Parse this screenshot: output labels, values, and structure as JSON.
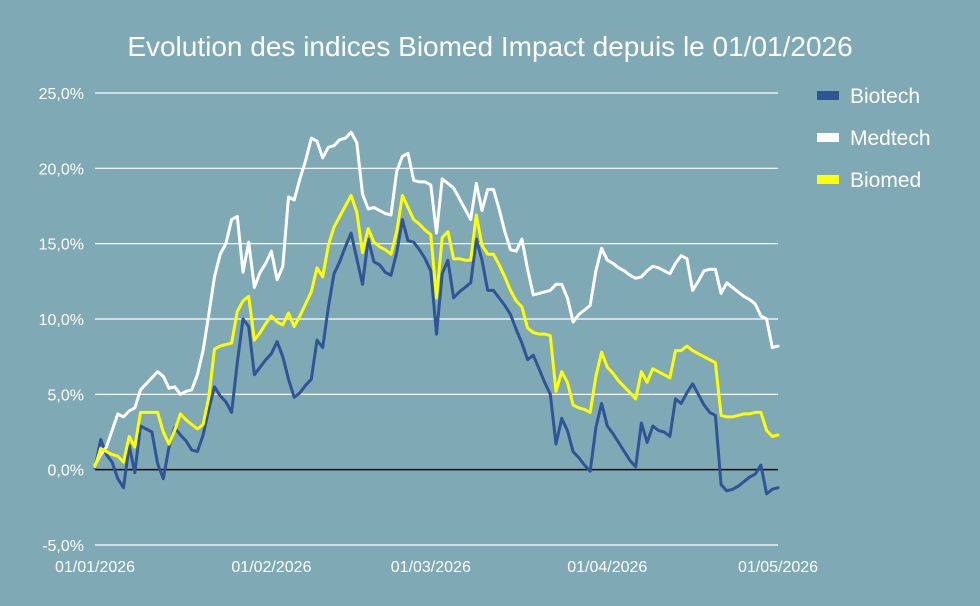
{
  "chart_data": {
    "type": "line",
    "title": "Evolution des indices Biomed Impact depuis le 01/01/2026",
    "xlabel": "",
    "ylabel": "",
    "x_ticks": [
      "01/01/2026",
      "01/02/2026",
      "01/03/2026",
      "01/04/2026",
      "01/05/2026"
    ],
    "x_tick_days": [
      0,
      31,
      59,
      90,
      120
    ],
    "x_range_days": [
      0,
      120
    ],
    "y_ticks": [
      "25,0%",
      "20,0%",
      "15,0%",
      "10,0%",
      "5,0%",
      "0,0%",
      "-5,0%"
    ],
    "y_tick_values": [
      25,
      20,
      15,
      10,
      5,
      0,
      -5
    ],
    "ylim": [
      -5,
      25
    ],
    "grid": true,
    "legend_position": "right",
    "series": [
      {
        "name": "Biotech",
        "color": "#2f5597",
        "x": [
          0,
          1,
          2,
          3,
          4,
          5,
          6,
          7,
          8,
          9,
          10,
          11,
          12,
          13,
          14,
          15,
          16,
          17,
          18,
          19,
          20,
          21,
          22,
          23,
          24,
          25,
          26,
          27,
          28,
          29,
          30,
          31,
          32,
          33,
          34,
          35,
          36,
          37,
          38,
          39,
          40,
          41,
          42,
          43,
          44,
          45,
          46,
          47,
          48,
          49,
          50,
          51,
          52,
          53,
          54,
          55,
          56,
          57,
          58,
          59,
          60,
          61,
          62,
          63,
          64,
          65,
          66,
          67,
          68,
          69,
          70,
          71,
          72,
          73,
          74,
          75,
          76,
          77,
          78,
          79,
          80,
          81,
          82,
          83,
          84,
          85,
          86,
          87,
          88,
          89,
          90,
          91,
          92,
          93,
          94,
          95,
          96,
          97,
          98,
          99,
          100,
          101,
          102,
          103,
          104,
          105,
          106,
          107,
          108,
          109,
          110,
          111,
          112,
          113,
          114,
          115,
          116,
          117,
          118,
          119,
          120
        ],
        "values": [
          0.1,
          2.0,
          1.0,
          0.5,
          -0.6,
          -1.2,
          1.6,
          -0.2,
          2.9,
          2.7,
          2.5,
          0.4,
          -0.6,
          1.5,
          2.8,
          2.3,
          1.9,
          1.3,
          1.2,
          2.3,
          4.0,
          5.5,
          4.9,
          4.5,
          3.8,
          7.1,
          10.0,
          9.5,
          6.3,
          6.8,
          7.3,
          7.7,
          8.5,
          7.5,
          6.0,
          4.8,
          5.1,
          5.6,
          6.0,
          8.6,
          8.1,
          10.8,
          13.0,
          13.8,
          14.8,
          15.7,
          14.0,
          12.3,
          15.3,
          13.8,
          13.6,
          13.1,
          12.9,
          14.4,
          16.6,
          15.2,
          15.1,
          14.6,
          14.0,
          13.2,
          9.0,
          13.0,
          13.9,
          11.4,
          11.8,
          12.1,
          12.4,
          15.3,
          13.9,
          11.9,
          11.9,
          11.4,
          10.9,
          10.3,
          9.3,
          8.4,
          7.3,
          7.6,
          6.7,
          5.8,
          5.0,
          1.7,
          3.4,
          2.6,
          1.2,
          0.8,
          0.3,
          -0.1,
          2.8,
          4.4,
          2.9,
          2.4,
          1.8,
          1.2,
          0.6,
          0.2,
          3.1,
          1.8,
          2.9,
          2.6,
          2.5,
          2.2,
          4.7,
          4.4,
          5.1,
          5.7,
          5.0,
          4.3,
          3.8,
          3.6,
          -1.0,
          -1.4,
          -1.3,
          -1.1,
          -0.8,
          -0.5,
          -0.3,
          0.3,
          -1.6,
          -1.3,
          -1.2
        ]
      },
      {
        "name": "Medtech",
        "color": "#ffffff",
        "x": [
          0,
          1,
          2,
          3,
          4,
          5,
          6,
          7,
          8,
          9,
          10,
          11,
          12,
          13,
          14,
          15,
          16,
          17,
          18,
          19,
          20,
          21,
          22,
          23,
          24,
          25,
          26,
          27,
          28,
          29,
          30,
          31,
          32,
          33,
          34,
          35,
          36,
          37,
          38,
          39,
          40,
          41,
          42,
          43,
          44,
          45,
          46,
          47,
          48,
          49,
          50,
          51,
          52,
          53,
          54,
          55,
          56,
          57,
          58,
          59,
          60,
          61,
          62,
          63,
          64,
          65,
          66,
          67,
          68,
          69,
          70,
          71,
          72,
          73,
          74,
          75,
          76,
          77,
          78,
          79,
          80,
          81,
          82,
          83,
          84,
          85,
          86,
          87,
          88,
          89,
          90,
          91,
          92,
          93,
          94,
          95,
          96,
          97,
          98,
          99,
          100,
          101,
          102,
          103,
          104,
          105,
          106,
          107,
          108,
          109,
          110,
          111,
          112,
          113,
          114,
          115,
          116,
          117,
          118,
          119,
          120
        ],
        "values": [
          0.3,
          1.0,
          1.5,
          2.6,
          3.7,
          3.5,
          3.9,
          4.1,
          5.3,
          5.7,
          6.1,
          6.5,
          6.2,
          5.4,
          5.5,
          5.0,
          5.2,
          5.3,
          6.3,
          7.9,
          10.3,
          12.8,
          14.3,
          15.0,
          16.6,
          16.8,
          13.1,
          15.1,
          12.1,
          13.1,
          13.7,
          14.5,
          12.6,
          13.5,
          18.1,
          17.9,
          19.3,
          20.5,
          22.0,
          21.8,
          20.7,
          21.4,
          21.5,
          21.9,
          22.0,
          22.4,
          21.7,
          18.3,
          17.3,
          17.4,
          17.2,
          17.0,
          16.9,
          19.8,
          20.8,
          21.0,
          19.2,
          19.1,
          19.1,
          18.9,
          15.7,
          19.3,
          19.0,
          18.7,
          18.0,
          17.3,
          16.6,
          19.0,
          17.2,
          18.6,
          18.6,
          17.3,
          15.8,
          14.6,
          14.5,
          15.3,
          13.3,
          11.6,
          11.7,
          11.8,
          11.9,
          12.3,
          12.3,
          11.4,
          9.8,
          10.3,
          10.6,
          10.9,
          13.2,
          14.7,
          13.9,
          13.7,
          13.4,
          13.2,
          12.9,
          12.7,
          12.8,
          13.2,
          13.5,
          13.4,
          13.2,
          13.0,
          13.7,
          14.2,
          14.0,
          11.9,
          12.5,
          13.2,
          13.3,
          13.3,
          11.7,
          12.4,
          12.1,
          11.8,
          11.5,
          11.3,
          11.0,
          10.2,
          10.0,
          8.1,
          8.2
        ]
      },
      {
        "name": "Biomed",
        "color": "#ffff00",
        "x": [
          0,
          1,
          2,
          3,
          4,
          5,
          6,
          7,
          8,
          9,
          10,
          11,
          12,
          13,
          14,
          15,
          16,
          17,
          18,
          19,
          20,
          21,
          22,
          23,
          24,
          25,
          26,
          27,
          28,
          29,
          30,
          31,
          32,
          33,
          34,
          35,
          36,
          37,
          38,
          39,
          40,
          41,
          42,
          43,
          44,
          45,
          46,
          47,
          48,
          49,
          50,
          51,
          52,
          53,
          54,
          55,
          56,
          57,
          58,
          59,
          60,
          61,
          62,
          63,
          64,
          65,
          66,
          67,
          68,
          69,
          70,
          71,
          72,
          73,
          74,
          75,
          76,
          77,
          78,
          79,
          80,
          81,
          82,
          83,
          84,
          85,
          86,
          87,
          88,
          89,
          90,
          91,
          92,
          93,
          94,
          95,
          96,
          97,
          98,
          99,
          100,
          101,
          102,
          103,
          104,
          105,
          106,
          107,
          108,
          109,
          110,
          111,
          112,
          113,
          114,
          115,
          116,
          117,
          118,
          119,
          120
        ],
        "values": [
          0.2,
          1.4,
          1.2,
          1.0,
          0.9,
          0.5,
          2.2,
          1.5,
          3.8,
          3.8,
          3.8,
          3.8,
          2.5,
          1.7,
          2.6,
          3.7,
          3.3,
          3.0,
          2.7,
          3.0,
          4.8,
          8.0,
          8.2,
          8.3,
          8.4,
          10.5,
          11.2,
          11.5,
          8.6,
          9.1,
          9.7,
          10.2,
          9.8,
          9.6,
          10.4,
          9.5,
          10.2,
          11.0,
          11.8,
          13.4,
          12.8,
          14.9,
          16.1,
          16.8,
          17.5,
          18.2,
          17.1,
          14.4,
          16.0,
          15.1,
          14.8,
          14.6,
          14.3,
          15.8,
          18.2,
          17.4,
          16.6,
          16.3,
          15.9,
          15.6,
          11.4,
          15.4,
          15.8,
          14.0,
          14.0,
          13.9,
          13.9,
          16.9,
          14.9,
          14.3,
          14.3,
          13.6,
          12.8,
          11.9,
          11.2,
          10.8,
          9.4,
          9.1,
          9.0,
          9.0,
          8.9,
          5.2,
          6.5,
          5.8,
          4.3,
          4.1,
          4.0,
          3.8,
          6.2,
          7.8,
          6.8,
          6.4,
          5.9,
          5.5,
          5.1,
          4.7,
          6.5,
          5.8,
          6.7,
          6.5,
          6.3,
          6.1,
          7.9,
          7.9,
          8.2,
          7.9,
          7.7,
          7.5,
          7.3,
          7.1,
          3.6,
          3.5,
          3.5,
          3.6,
          3.7,
          3.7,
          3.8,
          3.8,
          2.6,
          2.2,
          2.3
        ]
      }
    ]
  }
}
